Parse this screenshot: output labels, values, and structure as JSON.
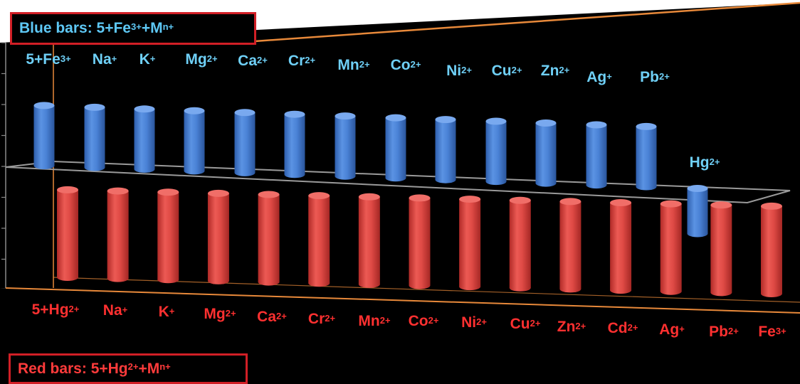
{
  "legend": {
    "blue_base": "Blue bars: 5+Fe",
    "blue_sup": "3+",
    "blue_mid": "+M",
    "blue_sup2": "n+",
    "red_base": "Red bars: 5+Hg",
    "red_sup": "2+",
    "red_mid": "+M",
    "red_sup2": "n+"
  },
  "colors": {
    "blue_bar": "#3f79d0",
    "red_bar": "#d9423e",
    "blue_text": "#5ec8f5",
    "red_text": "#ff3b3b",
    "frame": "#e8893a",
    "background": "#000000"
  },
  "chart_data": [
    {
      "type": "bar",
      "legend": "Blue bars: 5+Fe3+ +Mn+",
      "categories": [
        "5+Fe3+",
        "Na+",
        "K+",
        "Mg2+",
        "Ca2+",
        "Cr2+",
        "Mn2+",
        "Co2+",
        "Ni2+",
        "Cu2+",
        "Zn2+",
        "Ag+",
        "Pb2+",
        "Hg2+"
      ],
      "labels": [
        {
          "base": "5+Fe",
          "sup": "3+"
        },
        {
          "base": "Na",
          "sup": "+"
        },
        {
          "base": "K",
          "sup": "+"
        },
        {
          "base": "Mg",
          "sup": "2+"
        },
        {
          "base": "Ca",
          "sup": "2+"
        },
        {
          "base": "Cr",
          "sup": "2+"
        },
        {
          "base": "Mn",
          "sup": "2+"
        },
        {
          "base": "Co",
          "sup": "2+"
        },
        {
          "base": "Ni",
          "sup": "2+"
        },
        {
          "base": "Cu",
          "sup": "2+"
        },
        {
          "base": "Zn",
          "sup": "2+"
        },
        {
          "base": "Ag",
          "sup": "+"
        },
        {
          "base": "Pb",
          "sup": "2+"
        },
        {
          "base": "Hg",
          "sup": "2+"
        }
      ],
      "values": [
        1.0,
        1.0,
        1.0,
        1.0,
        1.0,
        1.0,
        1.0,
        1.0,
        1.0,
        1.0,
        1.0,
        1.0,
        1.0,
        -0.75
      ],
      "ylim": [
        -1.3,
        1.3
      ]
    },
    {
      "type": "bar",
      "legend": "Red bars: 5+Hg2+ +Mn+",
      "categories": [
        "5+Hg2+",
        "Na+",
        "K+",
        "Mg2+",
        "Ca2+",
        "Cr2+",
        "Mn2+",
        "Co2+",
        "Ni2+",
        "Cu2+",
        "Zn2+",
        "Cd2+",
        "Ag+",
        "Pb2+",
        "Fe3+"
      ],
      "labels": [
        {
          "base": "5+Hg",
          "sup": "2+"
        },
        {
          "base": "Na",
          "sup": "+"
        },
        {
          "base": "K",
          "sup": "+"
        },
        {
          "base": "Mg",
          "sup": "2+"
        },
        {
          "base": "Ca",
          "sup": "2+"
        },
        {
          "base": "Cr",
          "sup": "2+"
        },
        {
          "base": "Mn",
          "sup": "2+"
        },
        {
          "base": "Co",
          "sup": "2+"
        },
        {
          "base": "Ni",
          "sup": "2+"
        },
        {
          "base": "Cu",
          "sup": "2+"
        },
        {
          "base": "Zn",
          "sup": "2+"
        },
        {
          "base": "Cd",
          "sup": "2+"
        },
        {
          "base": "Ag",
          "sup": "+"
        },
        {
          "base": "Pb",
          "sup": "2+"
        },
        {
          "base": "Fe",
          "sup": "3+"
        }
      ],
      "values": [
        1.0,
        1.0,
        1.0,
        1.0,
        1.0,
        1.0,
        1.0,
        1.0,
        1.0,
        1.0,
        1.0,
        1.0,
        1.0,
        1.0,
        1.0
      ],
      "ylim": [
        0,
        1.3
      ]
    }
  ]
}
